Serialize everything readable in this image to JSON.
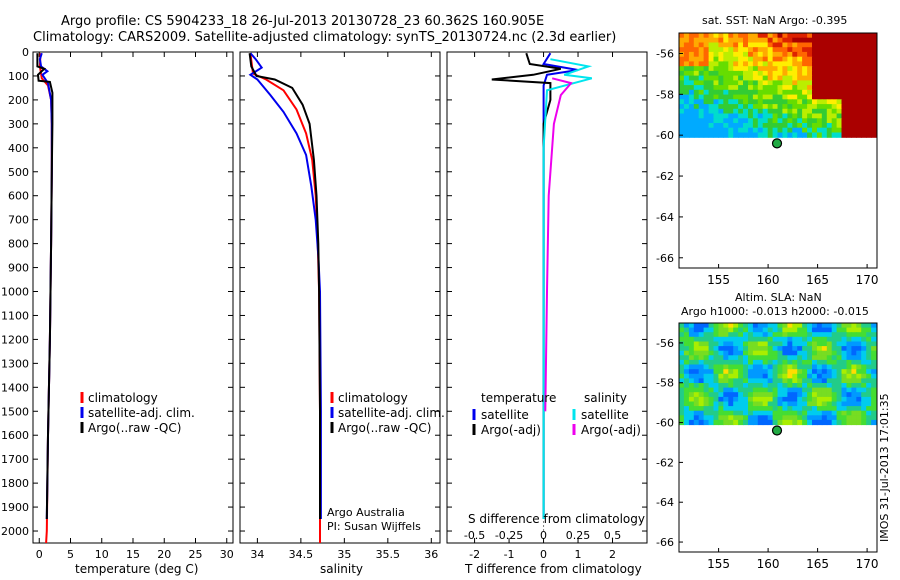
{
  "title_line1": "Argo profile: CS 5904233_18 26-Jul-2013 20130728_23 60.362S 160.905E",
  "title_line2": "Climatology: CARS2009. Satellite-adjusted climatology: synTS_20130724.nc (2.3d earlier)",
  "colors": {
    "climatology": "#ff0000",
    "satellite": "#0000ee",
    "argo": "#000000",
    "sat_salinity": "#00e5ee",
    "argo_salinity_adj": "#ee00ee"
  },
  "timestamp": "IMOS 31-Jul-2013 17:01:35",
  "chart_data": [
    {
      "id": "temperature",
      "type": "line",
      "xlabel": "temperature (deg C)",
      "ylim": [
        2050,
        0
      ],
      "xlim": [
        -1,
        31
      ],
      "x_ticks": [
        "0",
        "5",
        "10",
        "15",
        "20",
        "25",
        "30"
      ],
      "y_ticks": [
        "0",
        "100",
        "200",
        "300",
        "400",
        "500",
        "600",
        "700",
        "800",
        "900",
        "1000",
        "1100",
        "1200",
        "1300",
        "1400",
        "1500",
        "1600",
        "1700",
        "1800",
        "1900",
        "2000"
      ],
      "legend": [
        "climatology",
        "satellite-adj. clim.",
        "Argo(..raw -QC)"
      ],
      "series": [
        {
          "name": "climatology",
          "color": "#ff0000",
          "points": [
            [
              0.2,
              5
            ],
            [
              0.1,
              60
            ],
            [
              0.4,
              110
            ],
            [
              1.4,
              140
            ],
            [
              1.9,
              200
            ],
            [
              2.0,
              300
            ],
            [
              2.0,
              500
            ],
            [
              1.9,
              800
            ],
            [
              1.7,
              1200
            ],
            [
              1.4,
              1600
            ],
            [
              1.2,
              2000
            ],
            [
              1.1,
              2050
            ]
          ]
        },
        {
          "name": "satellite-adj. clim.",
          "color": "#0000ee",
          "points": [
            [
              0.4,
              5
            ],
            [
              0.1,
              30
            ],
            [
              0.3,
              60
            ],
            [
              1.3,
              80
            ],
            [
              0.5,
              95
            ],
            [
              1.4,
              130
            ],
            [
              1.9,
              200
            ],
            [
              2.0,
              300
            ],
            [
              2.0,
              500
            ],
            [
              1.9,
              800
            ],
            [
              1.7,
              1200
            ],
            [
              1.4,
              1600
            ],
            [
              1.2,
              1950
            ]
          ]
        },
        {
          "name": "Argo(..raw -QC)",
          "color": "#000000",
          "points": [
            [
              -0.3,
              5
            ],
            [
              -0.3,
              60
            ],
            [
              0.8,
              70
            ],
            [
              -0.2,
              95
            ],
            [
              -0.1,
              120
            ],
            [
              1.7,
              125
            ],
            [
              2.1,
              170
            ],
            [
              2.1,
              300
            ],
            [
              2.0,
              500
            ],
            [
              1.9,
              800
            ],
            [
              1.7,
              1200
            ],
            [
              1.4,
              1600
            ],
            [
              1.2,
              1950
            ]
          ]
        }
      ]
    },
    {
      "id": "salinity",
      "type": "line",
      "xlabel": "salinity",
      "ylim": [
        2050,
        0
      ],
      "xlim": [
        33.8,
        36.1
      ],
      "x_ticks": [
        "34",
        "34.5",
        "35",
        "35.5",
        "36"
      ],
      "legend": [
        "climatology",
        "satellite-adj. clim.",
        "Argo(..raw -QC)"
      ],
      "annotation": [
        "Argo Australia",
        "PI: Susan Wijffels"
      ],
      "series": [
        {
          "name": "climatology",
          "color": "#ff0000",
          "points": [
            [
              33.92,
              5
            ],
            [
              33.95,
              90
            ],
            [
              34.1,
              115
            ],
            [
              34.3,
              160
            ],
            [
              34.45,
              240
            ],
            [
              34.56,
              340
            ],
            [
              34.63,
              450
            ],
            [
              34.67,
              600
            ],
            [
              34.69,
              750
            ],
            [
              34.71,
              1000
            ],
            [
              34.72,
              1500
            ],
            [
              34.72,
              2050
            ]
          ]
        },
        {
          "name": "satellite-adj. clim.",
          "color": "#0000ee",
          "points": [
            [
              33.92,
              5
            ],
            [
              33.98,
              30
            ],
            [
              34.05,
              65
            ],
            [
              33.92,
              95
            ],
            [
              34.0,
              115
            ],
            [
              34.15,
              180
            ],
            [
              34.3,
              250
            ],
            [
              34.45,
              340
            ],
            [
              34.56,
              430
            ],
            [
              34.62,
              560
            ],
            [
              34.67,
              700
            ],
            [
              34.7,
              850
            ],
            [
              34.72,
              1000
            ],
            [
              34.73,
              1500
            ],
            [
              34.73,
              1950
            ]
          ]
        },
        {
          "name": "Argo(..raw -QC)",
          "color": "#000000",
          "points": [
            [
              33.91,
              5
            ],
            [
              33.93,
              60
            ],
            [
              33.99,
              100
            ],
            [
              34.2,
              115
            ],
            [
              34.4,
              150
            ],
            [
              34.52,
              220
            ],
            [
              34.6,
              300
            ],
            [
              34.65,
              450
            ],
            [
              34.68,
              600
            ],
            [
              34.7,
              800
            ],
            [
              34.71,
              1000
            ],
            [
              34.72,
              1500
            ],
            [
              34.72,
              1950
            ]
          ]
        }
      ]
    },
    {
      "id": "differences",
      "type": "line",
      "xlabel": "T difference from climatology",
      "xlabel2": "S difference from climatology",
      "ylim": [
        2050,
        0
      ],
      "xlim": [
        -2.8,
        3.0
      ],
      "x_ticks": [
        "-2",
        "-1",
        "0",
        "1",
        "2"
      ],
      "x_ticks_s": [
        "-0.5",
        "-0.25",
        "0",
        "0.25",
        "0.5"
      ],
      "legend": {
        "temperature": [
          "satellite",
          "Argo(-adj)"
        ],
        "salinity": [
          "satellite",
          "Argo(-adj)"
        ]
      },
      "series": [
        {
          "name": "temperature satellite",
          "color": "#0000ee",
          "points": [
            [
              0.2,
              5
            ],
            [
              0.0,
              50
            ],
            [
              1.0,
              75
            ],
            [
              0.1,
              95
            ],
            [
              0.0,
              140
            ],
            [
              0,
              300
            ],
            [
              0,
              600
            ],
            [
              0,
              1000
            ],
            [
              0,
              1500
            ],
            [
              0,
              1950
            ]
          ]
        },
        {
          "name": "temperature Argo(-adj)",
          "color": "#000000",
          "points": [
            [
              -0.5,
              5
            ],
            [
              -0.4,
              50
            ],
            [
              0.5,
              70
            ],
            [
              -0.3,
              95
            ],
            [
              -1.5,
              115
            ],
            [
              0.2,
              130
            ],
            [
              0.2,
              200
            ],
            [
              0,
              300
            ],
            [
              0,
              600
            ],
            [
              0,
              1000
            ],
            [
              0,
              1500
            ],
            [
              0,
              1950
            ]
          ]
        },
        {
          "name": "salinity satellite",
          "color": "#00e5ee",
          "points": [
            [
              0.2,
              30
            ],
            [
              1.3,
              60
            ],
            [
              0.6,
              95
            ],
            [
              1.4,
              110
            ],
            [
              0.1,
              160
            ],
            [
              0.0,
              400
            ],
            [
              0.0,
              800
            ],
            [
              0.0,
              1500
            ],
            [
              0.0,
              1950
            ]
          ]
        },
        {
          "name": "salinity Argo(-adj)",
          "color": "#ee00ee",
          "points": [
            [
              0.25,
              110
            ],
            [
              0.8,
              130
            ],
            [
              0.5,
              180
            ],
            [
              0.3,
              300
            ],
            [
              0.15,
              600
            ],
            [
              0.1,
              1000
            ],
            [
              0.05,
              1500
            ]
          ]
        }
      ]
    },
    {
      "id": "sst_map",
      "type": "heatmap",
      "title": "sat. SST: NaN Argo: -0.395",
      "xlim": [
        151,
        171
      ],
      "ylim": [
        -66.5,
        -55
      ],
      "x_ticks": [
        "155",
        "160",
        "165",
        "170"
      ],
      "y_ticks": [
        "-56",
        "-58",
        "-60",
        "-62",
        "-64",
        "-66"
      ],
      "marker": {
        "lon": 160.9,
        "lat": -60.4
      }
    },
    {
      "id": "sla_map",
      "type": "heatmap",
      "title": "Altim. SLA: NaN",
      "title2": "Argo h1000: -0.013 h2000: -0.015",
      "xlim": [
        151,
        171
      ],
      "ylim": [
        -66.5,
        -55
      ],
      "x_ticks": [
        "155",
        "160",
        "165",
        "170"
      ],
      "y_ticks": [
        "-56",
        "-58",
        "-60",
        "-62",
        "-64",
        "-66"
      ],
      "marker": {
        "lon": 160.9,
        "lat": -60.4
      }
    }
  ]
}
